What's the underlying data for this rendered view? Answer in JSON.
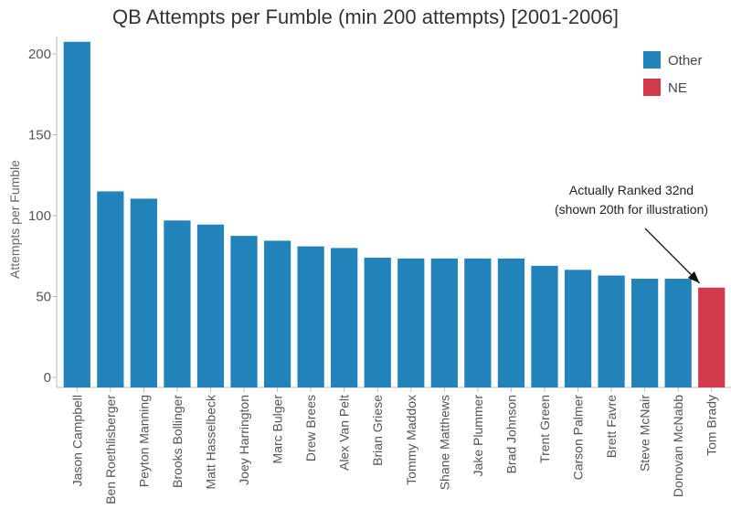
{
  "chart_data": {
    "type": "bar",
    "title": "QB Attempts per Fumble (min 200 attempts) [2001-2006]",
    "xlabel": "",
    "ylabel": "Attempts per Fumble",
    "ylim": [
      0,
      220
    ],
    "yticks": [
      0,
      50,
      100,
      150,
      200
    ],
    "grid": false,
    "legend_position": "top-right",
    "legend": [
      {
        "name": "Other",
        "color": "#2183b9"
      },
      {
        "name": "NE",
        "color": "#d13a4d"
      }
    ],
    "categories": [
      "Jason Campbell",
      "Ben Roethlisberger",
      "Peyton Manning",
      "Brooks Bollinger",
      "Matt Hasselbeck",
      "Joey Harrington",
      "Marc Bulger",
      "Drew Brees",
      "Alex Van Pelt",
      "Brian Griese",
      "Tommy Maddox",
      "Shane Matthews",
      "Jake Plummer",
      "Brad Johnson",
      "Trent Green",
      "Carson Palmer",
      "Brett Favre",
      "Steve McNair",
      "Donovan McNabb",
      "Tom Brady"
    ],
    "values": [
      207.5,
      115,
      110.5,
      97,
      94.5,
      87.5,
      84.5,
      81,
      80,
      74,
      73.5,
      73.5,
      73.5,
      73.5,
      69,
      66.5,
      63,
      61,
      61,
      55.5
    ],
    "groups": [
      "Other",
      "Other",
      "Other",
      "Other",
      "Other",
      "Other",
      "Other",
      "Other",
      "Other",
      "Other",
      "Other",
      "Other",
      "Other",
      "Other",
      "Other",
      "Other",
      "Other",
      "Other",
      "Other",
      "NE"
    ],
    "annotations": [
      {
        "lines": [
          "Actually Ranked 32nd",
          "(shown 20th for illustration)"
        ],
        "target_category": "Tom Brady"
      }
    ]
  }
}
